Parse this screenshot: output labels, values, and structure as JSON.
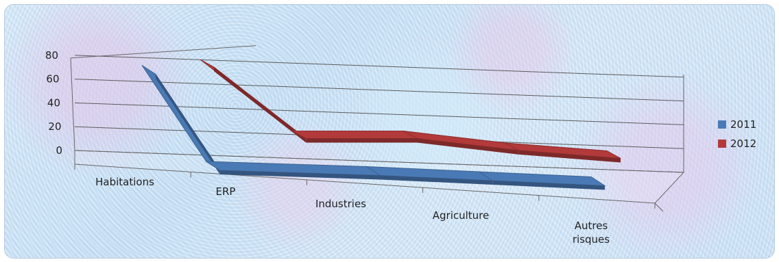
{
  "chart_data": {
    "type": "line",
    "title": "",
    "xlabel": "",
    "ylabel": "",
    "categories": [
      "Habitations",
      "ERP",
      "Industries",
      "Agriculture",
      "Autres risques"
    ],
    "series": [
      {
        "name": "2011",
        "values": [
          70,
          0,
          0,
          0,
          0
        ],
        "color": "#4a7ab5"
      },
      {
        "name": "2012",
        "values": [
          72,
          5,
          10,
          3,
          0
        ],
        "color": "#b23a3a"
      }
    ],
    "ylim": [
      0,
      80
    ],
    "yticks": [
      0,
      20,
      40,
      60,
      80
    ],
    "grid": true,
    "legend_position": "right",
    "style": "3d-line"
  }
}
